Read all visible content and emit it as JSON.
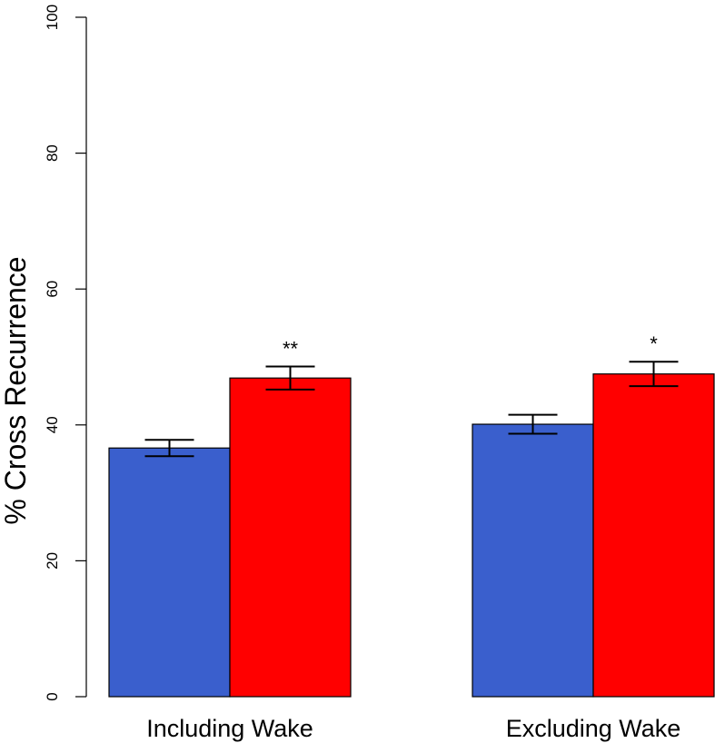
{
  "chart_data": {
    "type": "bar",
    "title": "",
    "xlabel": "",
    "ylabel": "% Cross Recurrence",
    "ylim": [
      0,
      100
    ],
    "yticks": [
      0,
      20,
      40,
      60,
      80,
      100
    ],
    "grid": false,
    "legend": "none",
    "categories": [
      "Including Wake",
      "Excluding Wake"
    ],
    "series": [
      {
        "color": "#3a5fcd",
        "values": [
          36.6,
          40.1
        ],
        "error": [
          1.2,
          1.4
        ]
      },
      {
        "color": "#ff0000",
        "values": [
          46.9,
          47.5
        ],
        "error": [
          1.7,
          1.8
        ]
      }
    ],
    "annotations": [
      "**",
      "*"
    ]
  }
}
